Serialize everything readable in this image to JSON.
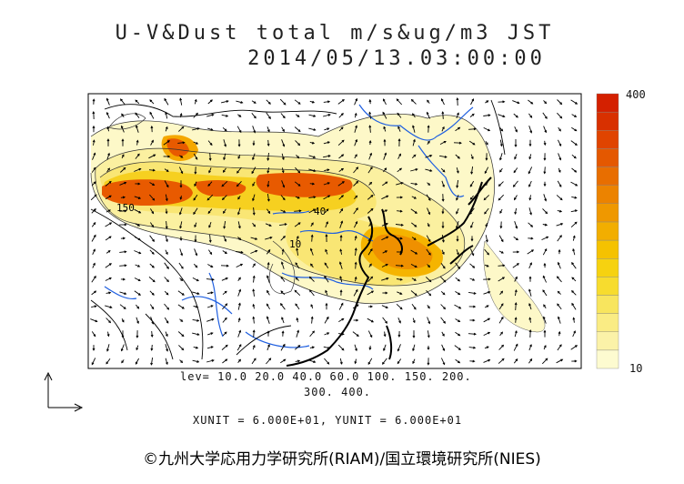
{
  "header": {
    "title_line1": "U-V&Dust total m/s&ug/m3 JST",
    "title_line2": "2014/05/13.03:00:00"
  },
  "colorbar": {
    "max_label": "400",
    "min_label": "10",
    "colors": [
      "#fdfbd0",
      "#fbf2a8",
      "#faec84",
      "#f8e55e",
      "#f7dc2e",
      "#f6d210",
      "#f5c200",
      "#f2ae00",
      "#ef9800",
      "#ec8300",
      "#e86e00",
      "#e45800",
      "#e04400",
      "#d83000",
      "#d42000"
    ]
  },
  "legend": {
    "levels_line1": "lev= 10.0 20.0 40.0 60.0 100. 150. 200.",
    "levels_line2": "300. 400.",
    "units_line": "XUNIT = 6.000E+01, YUNIT = 6.000E+01"
  },
  "map_labels": {
    "contour_a": "150",
    "contour_b": "10",
    "contour_c": "40"
  },
  "footer": {
    "copyright": "©九州大学応用力学研究所(RIAM)/国立環境研究所(NIES)"
  },
  "colors": {
    "coast": "#000000",
    "rivers": "#1f5fe0",
    "dust_core": "#e85a00",
    "dust_mid": "#f5c400",
    "dust_low": "#fbf2a8"
  }
}
